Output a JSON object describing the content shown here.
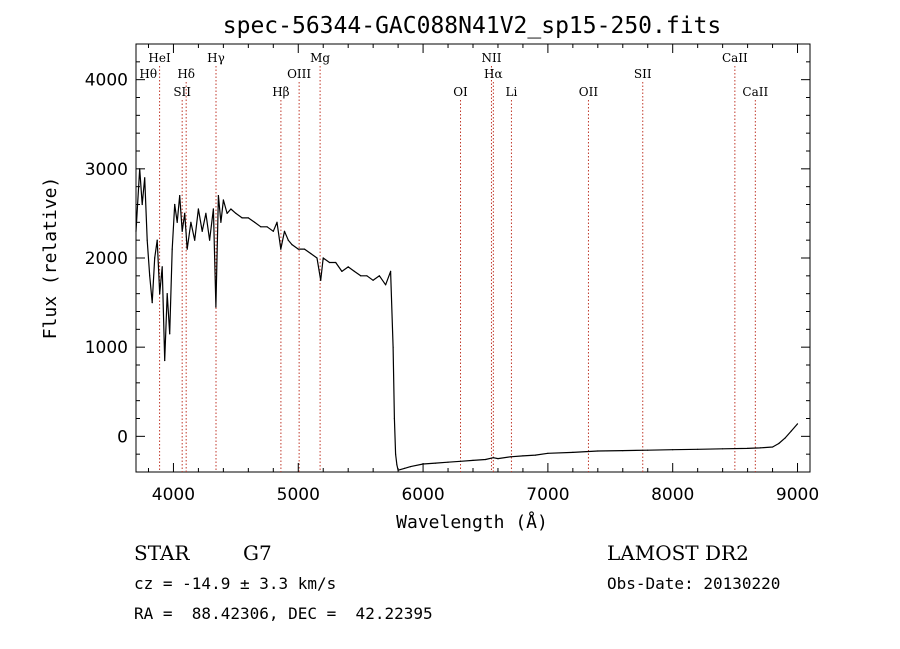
{
  "chart_data": {
    "type": "line",
    "title": "spec-56344-GAC088N41V2_sp15-250.fits",
    "xlabel": "Wavelength (Å)",
    "ylabel": "Flux (relative)",
    "xlim": [
      3700,
      9100
    ],
    "ylim": [
      -400,
      4400
    ],
    "grid": false,
    "x_ticks": [
      4000,
      5000,
      6000,
      7000,
      8000,
      9000
    ],
    "y_ticks": [
      0,
      1000,
      2000,
      3000,
      4000
    ],
    "series": [
      {
        "color": "#000000",
        "x": [
          3700,
          3730,
          3750,
          3770,
          3790,
          3810,
          3830,
          3850,
          3870,
          3890,
          3910,
          3930,
          3950,
          3970,
          3990,
          4010,
          4030,
          4050,
          4070,
          4090,
          4110,
          4140,
          4170,
          4200,
          4230,
          4260,
          4290,
          4320,
          4340,
          4360,
          4380,
          4400,
          4430,
          4460,
          4500,
          4550,
          4600,
          4650,
          4700,
          4750,
          4800,
          4830,
          4860,
          4890,
          4920,
          4950,
          5000,
          5050,
          5100,
          5150,
          5180,
          5200,
          5250,
          5300,
          5350,
          5400,
          5450,
          5500,
          5550,
          5600,
          5650,
          5700,
          5740,
          5760,
          5770,
          5780,
          5790,
          5800,
          5850,
          5900,
          6000,
          6100,
          6200,
          6300,
          6400,
          6500,
          6563,
          6600,
          6700,
          6800,
          6900,
          7000,
          7200,
          7400,
          7600,
          7800,
          8000,
          8200,
          8400,
          8600,
          8700,
          8800,
          8850,
          8900,
          8950,
          9000
        ],
        "values": [
          2300,
          3000,
          2600,
          2900,
          2200,
          1800,
          1500,
          2000,
          2200,
          1600,
          1900,
          850,
          1600,
          1150,
          2100,
          2600,
          2400,
          2700,
          2300,
          2500,
          2100,
          2400,
          2200,
          2550,
          2300,
          2500,
          2200,
          2550,
          1450,
          2700,
          2400,
          2650,
          2500,
          2550,
          2500,
          2450,
          2450,
          2400,
          2350,
          2350,
          2300,
          2400,
          2100,
          2300,
          2200,
          2150,
          2100,
          2100,
          2050,
          2000,
          1750,
          2000,
          1950,
          1950,
          1850,
          1900,
          1850,
          1800,
          1800,
          1750,
          1800,
          1700,
          1850,
          1000,
          200,
          -200,
          -320,
          -380,
          -360,
          -340,
          -310,
          -300,
          -290,
          -280,
          -270,
          -260,
          -240,
          -250,
          -230,
          -220,
          -210,
          -190,
          -180,
          -165,
          -160,
          -155,
          -150,
          -145,
          -140,
          -135,
          -130,
          -120,
          -80,
          -20,
          60,
          140
        ]
      }
    ],
    "line_ids": [
      {
        "label": "Hθ",
        "x": 3798,
        "row": 2,
        "line": false
      },
      {
        "label": "HeI",
        "x": 3889,
        "row": 1,
        "line": true
      },
      {
        "label": "Hδ",
        "x": 4102,
        "row": 2,
        "line": true
      },
      {
        "label": "SII",
        "x": 4070,
        "row": 3,
        "line": true
      },
      {
        "label": "Hγ",
        "x": 4341,
        "row": 1,
        "line": true
      },
      {
        "label": "Hβ",
        "x": 4861,
        "row": 3,
        "line": true
      },
      {
        "label": "OIII",
        "x": 5007,
        "row": 2,
        "line": true
      },
      {
        "label": "Mg",
        "x": 5175,
        "row": 1,
        "line": true
      },
      {
        "label": "OI",
        "x": 6300,
        "row": 3,
        "line": true
      },
      {
        "label": "NII",
        "x": 6548,
        "row": 1,
        "line": true
      },
      {
        "label": "Hα",
        "x": 6563,
        "row": 2,
        "line": true
      },
      {
        "label": "Li",
        "x": 6708,
        "row": 3,
        "line": true
      },
      {
        "label": "OII",
        "x": 7325,
        "row": 3,
        "line": true
      },
      {
        "label": "SII",
        "x": 7760,
        "row": 2,
        "line": true
      },
      {
        "label": "CaII",
        "x": 8498,
        "row": 1,
        "line": true
      },
      {
        "label": "CaII",
        "x": 8662,
        "row": 3,
        "line": true
      }
    ],
    "line_color": "#c0392b"
  },
  "info": {
    "object_class": "STAR",
    "subclass": "G7",
    "survey": "LAMOST DR2",
    "cz": "cz = -14.9 ± 3.3 km/s",
    "obs_date": "Obs-Date: 20130220",
    "coords": "RA =  88.42306, DEC =  42.22395"
  }
}
